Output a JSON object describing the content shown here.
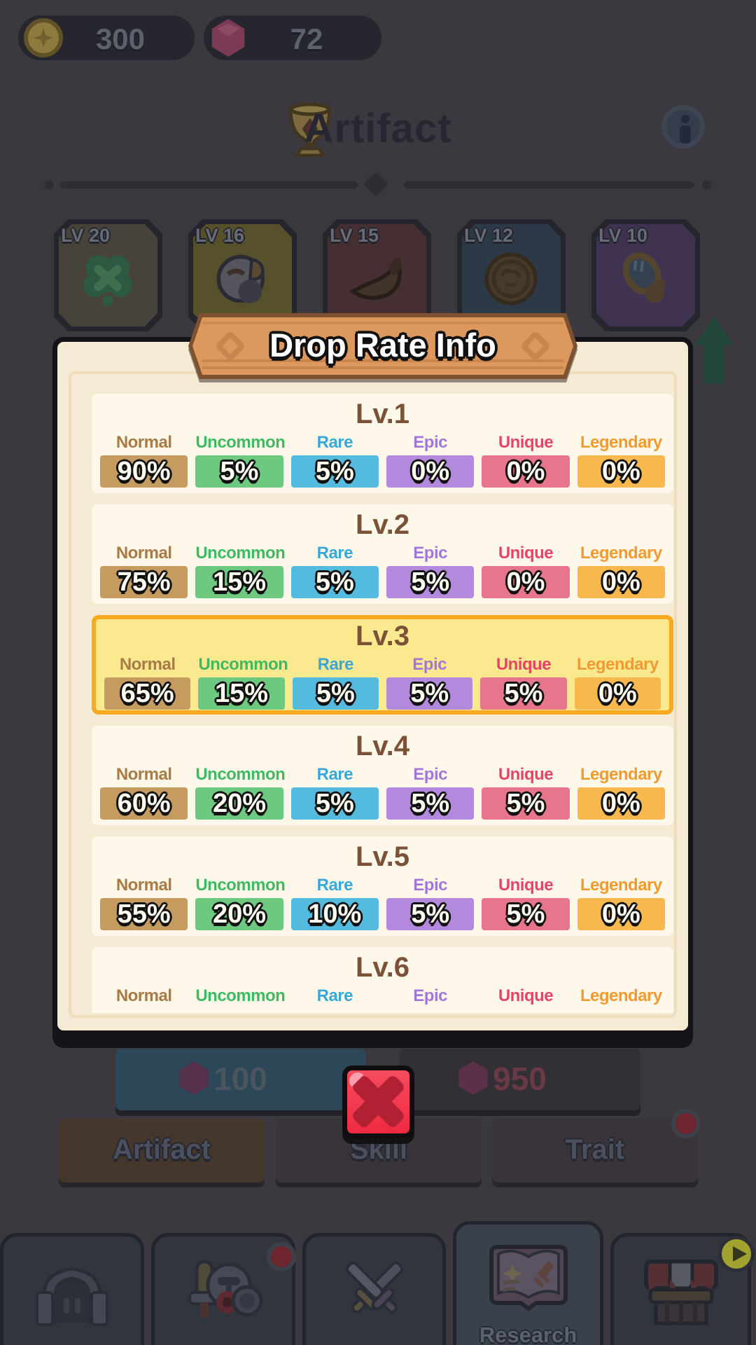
{
  "currency": {
    "gold_amount": "300",
    "gem_amount": "72"
  },
  "header": {
    "title": "Artifact"
  },
  "artifact_cards": [
    {
      "level": "LV 20",
      "icon": "clover-artifact",
      "bg": "#47423a"
    },
    {
      "level": "LV 16",
      "icon": "bird-artifact",
      "bg": "#56512b"
    },
    {
      "level": "LV 15",
      "icon": "horn-artifact",
      "bg": "#452f33"
    },
    {
      "level": "LV 12",
      "icon": "coin-artifact",
      "bg": "#2c3947"
    },
    {
      "level": "LV 10",
      "icon": "mirror-artifact",
      "bg": "#403352"
    }
  ],
  "modal": {
    "title": "Drop Rate Info",
    "rarities": [
      {
        "name": "Normal",
        "label_color": "#a87a45",
        "box_color": "#c59b60"
      },
      {
        "name": "Uncommon",
        "label_color": "#3fba62",
        "box_color": "#6cc97f"
      },
      {
        "name": "Rare",
        "label_color": "#3aa7d9",
        "box_color": "#54bade"
      },
      {
        "name": "Epic",
        "label_color": "#a277d7",
        "box_color": "#b289dc"
      },
      {
        "name": "Unique",
        "label_color": "#e84368",
        "box_color": "#e7758b"
      },
      {
        "name": "Legendary",
        "label_color": "#f19a30",
        "box_color": "#f7b84d"
      }
    ],
    "levels": [
      {
        "name": "Lv.1",
        "highlighted": false,
        "rates": [
          "90%",
          "5%",
          "5%",
          "0%",
          "0%",
          "0%"
        ]
      },
      {
        "name": "Lv.2",
        "highlighted": false,
        "rates": [
          "75%",
          "15%",
          "5%",
          "5%",
          "0%",
          "0%"
        ]
      },
      {
        "name": "Lv.3",
        "highlighted": true,
        "rates": [
          "65%",
          "15%",
          "5%",
          "5%",
          "5%",
          "0%"
        ]
      },
      {
        "name": "Lv.4",
        "highlighted": false,
        "rates": [
          "60%",
          "20%",
          "5%",
          "5%",
          "5%",
          "0%"
        ]
      },
      {
        "name": "Lv.5",
        "highlighted": false,
        "rates": [
          "55%",
          "20%",
          "10%",
          "5%",
          "5%",
          "0%"
        ]
      },
      {
        "name": "Lv.6",
        "highlighted": false,
        "rates": []
      }
    ],
    "highlight_colors": {
      "bg": "#fbe98f",
      "border": "#f7a91f"
    }
  },
  "upgrade_buttons": [
    {
      "cost": "100"
    },
    {
      "cost": "950"
    }
  ],
  "category_tabs": [
    {
      "label": "Artifact",
      "active": true,
      "badge": false
    },
    {
      "label": "Skill",
      "active": false,
      "badge": false
    },
    {
      "label": "Trait",
      "active": false,
      "badge": true
    }
  ],
  "bottom_nav": [
    {
      "icon": "castle-icon",
      "label": "",
      "badge": true,
      "active": false
    },
    {
      "icon": "knight-icon",
      "label": "",
      "badge": true,
      "active": false
    },
    {
      "icon": "swords-icon",
      "label": "",
      "badge": false,
      "active": false
    },
    {
      "icon": "research-book-icon",
      "label": "Research",
      "badge": false,
      "active": true
    },
    {
      "icon": "shop-icon",
      "label": "",
      "badge": false,
      "active": false,
      "play_badge": true
    }
  ]
}
